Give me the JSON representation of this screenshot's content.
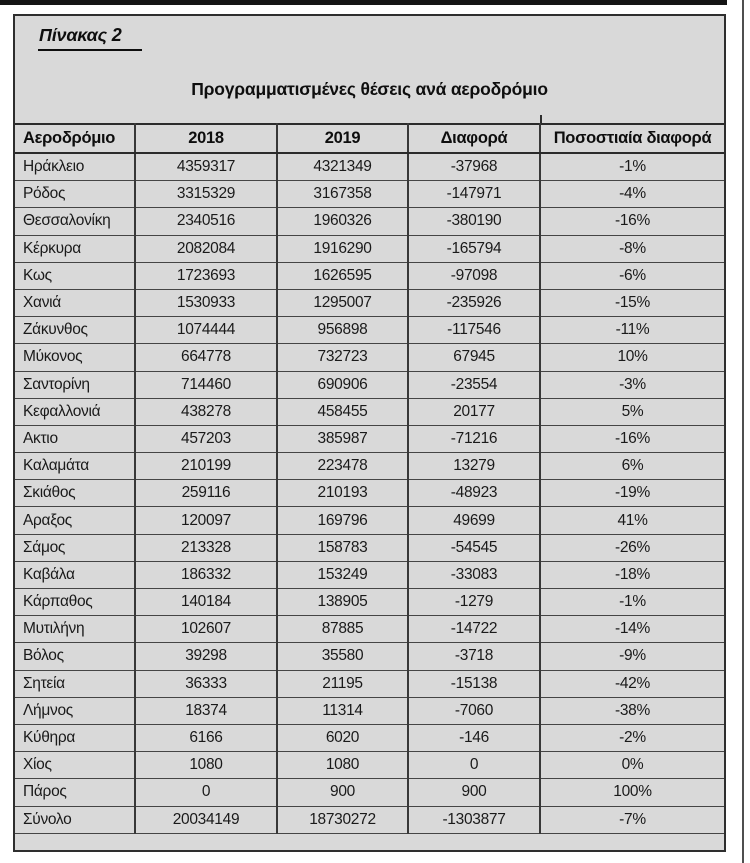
{
  "page": {
    "top_label": "Πίνακας 2",
    "title": "Προγραμματισμένες θέσεις ανά αεροδρόμιο"
  },
  "colors": {
    "panel_bg": "#d9d9d9",
    "rule": "#2e2e2e",
    "text": "#151515"
  },
  "chart_data": {
    "type": "table",
    "title": "Προγραμματισμένες θέσεις ανά αεροδρόμιο",
    "columns": [
      "Αεροδρόμιο",
      "2018",
      "2019",
      "Διαφορά",
      "Ποσοστιαία διαφορά"
    ],
    "rows": [
      [
        "Ηράκλειο",
        "4359317",
        "4321349",
        "-37968",
        "-1%"
      ],
      [
        "Ρόδος",
        "3315329",
        "3167358",
        "-147971",
        "-4%"
      ],
      [
        "Θεσσαλονίκη",
        "2340516",
        "1960326",
        "-380190",
        "-16%"
      ],
      [
        "Κέρκυρα",
        "2082084",
        "1916290",
        "-165794",
        "-8%"
      ],
      [
        "Κως",
        "1723693",
        "1626595",
        "-97098",
        "-6%"
      ],
      [
        "Χανιά",
        "1530933",
        "1295007",
        "-235926",
        "-15%"
      ],
      [
        "Ζάκυνθος",
        "1074444",
        "956898",
        "-117546",
        "-11%"
      ],
      [
        "Μύκονος",
        "664778",
        "732723",
        "67945",
        "10%"
      ],
      [
        "Σαντορίνη",
        "714460",
        "690906",
        "-23554",
        "-3%"
      ],
      [
        "Κεφαλλονιά",
        "438278",
        "458455",
        "20177",
        "5%"
      ],
      [
        "Ακτιο",
        "457203",
        "385987",
        "-71216",
        "-16%"
      ],
      [
        "Καλαμάτα",
        "210199",
        "223478",
        "13279",
        "6%"
      ],
      [
        "Σκιάθος",
        "259116",
        "210193",
        "-48923",
        "-19%"
      ],
      [
        "Αραξος",
        "120097",
        "169796",
        "49699",
        "41%"
      ],
      [
        "Σάμος",
        "213328",
        "158783",
        "-54545",
        "-26%"
      ],
      [
        "Καβάλα",
        "186332",
        "153249",
        "-33083",
        "-18%"
      ],
      [
        "Κάρπαθος",
        "140184",
        "138905",
        "-1279",
        "-1%"
      ],
      [
        "Μυτιλήνη",
        "102607",
        "87885",
        "-14722",
        "-14%"
      ],
      [
        "Βόλος",
        "39298",
        "35580",
        "-3718",
        "-9%"
      ],
      [
        "Σητεία",
        "36333",
        "21195",
        "-15138",
        "-42%"
      ],
      [
        "Λήμνος",
        "18374",
        "11314",
        "-7060",
        "-38%"
      ],
      [
        "Κύθηρα",
        "6166",
        "6020",
        "-146",
        "-2%"
      ],
      [
        "Χίος",
        "1080",
        "1080",
        "0",
        "0%"
      ],
      [
        "Πάρος",
        "0",
        "900",
        "900",
        "100%"
      ]
    ],
    "total_row": [
      "Σύνολο",
      "20034149",
      "18730272",
      "-1303877",
      "-7%"
    ]
  }
}
